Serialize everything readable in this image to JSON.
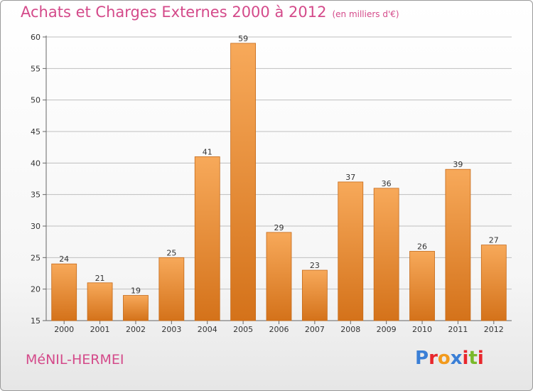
{
  "header": {
    "title": "Achats et Charges Externes 2000 à 2012",
    "unit": "(en milliers d'€)"
  },
  "footer": {
    "city": "MéNIL-HERMEI",
    "logo_text": "Proxiti",
    "logo_colors": [
      "#3a7fd6",
      "#e8262c",
      "#f29a1d",
      "#3a7fd6",
      "#e8262c",
      "#7ab92b",
      "#e8262c"
    ]
  },
  "colors": {
    "title": "#d44a8a",
    "bar_top": "#f7a95a",
    "bar_bottom": "#d4721a",
    "bar_edge": "#c56a1a",
    "grid": "#bfbfbf"
  },
  "chart_data": {
    "type": "bar",
    "categories": [
      "2000",
      "2001",
      "2002",
      "2003",
      "2004",
      "2005",
      "2006",
      "2007",
      "2008",
      "2009",
      "2010",
      "2011",
      "2012"
    ],
    "values": [
      24,
      21,
      19,
      25,
      41,
      59,
      29,
      23,
      37,
      36,
      26,
      39,
      27
    ],
    "title": "Achats et Charges Externes 2000 à 2012",
    "subtitle": "(en milliers d'€)",
    "xlabel": "",
    "ylabel": "",
    "ylim": [
      15,
      60
    ],
    "yticks": [
      15,
      20,
      25,
      30,
      35,
      40,
      45,
      50,
      55,
      60
    ],
    "grid": true
  }
}
